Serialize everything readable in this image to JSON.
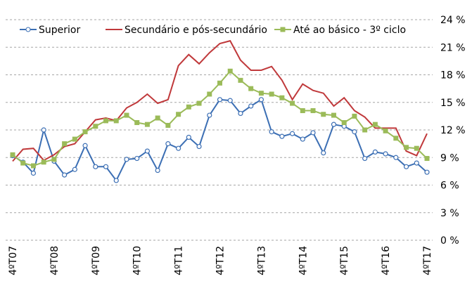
{
  "chart_data": {
    "type": "line",
    "categories": [
      "4ºT07",
      null,
      null,
      null,
      "4ºT08",
      null,
      null,
      null,
      "4ºT09",
      null,
      null,
      null,
      "4ºT10",
      null,
      null,
      null,
      "4ºT11",
      null,
      null,
      null,
      "4ºT12",
      null,
      null,
      null,
      "4ºT13",
      null,
      null,
      null,
      "4ºT14",
      null,
      null,
      null,
      "4ºT15",
      null,
      null,
      null,
      "4ºT16",
      null,
      null,
      null,
      "4ºT17"
    ],
    "series": [
      {
        "name": "Superior",
        "color": "#3c6fb4",
        "marker": "circle",
        "values": [
          9.2,
          8.5,
          7.3,
          12.0,
          8.6,
          7.1,
          7.7,
          10.3,
          8.0,
          8.0,
          6.5,
          8.8,
          8.9,
          9.7,
          7.6,
          10.5,
          10.0,
          11.2,
          10.2,
          13.6,
          15.3,
          15.2,
          13.8,
          14.6,
          15.3,
          11.8,
          11.3,
          11.6,
          11.0,
          11.7,
          9.5,
          12.6,
          12.4,
          11.8,
          8.9,
          9.6,
          9.4,
          9.0,
          8.0,
          8.4,
          7.4
        ]
      },
      {
        "name": "Secundário e pós-secundário",
        "color": "#c0393b",
        "marker": "none",
        "values": [
          8.6,
          9.9,
          10.0,
          8.7,
          9.3,
          10.2,
          10.5,
          11.8,
          13.1,
          13.3,
          13.0,
          14.4,
          15.0,
          15.9,
          14.9,
          15.3,
          19.0,
          20.2,
          19.2,
          20.4,
          21.4,
          21.7,
          19.6,
          18.5,
          18.5,
          18.9,
          17.4,
          15.3,
          17.0,
          16.3,
          16.0,
          14.6,
          15.5,
          14.1,
          13.4,
          12.2,
          12.2,
          12.2,
          9.7,
          9.2,
          11.6
        ]
      },
      {
        "name": "Até ao básico - 3º ciclo",
        "color": "#9bbb59",
        "marker": "square",
        "values": [
          9.3,
          8.4,
          8.1,
          8.5,
          8.8,
          10.5,
          11.0,
          11.8,
          12.4,
          13.0,
          13.0,
          13.6,
          12.8,
          12.6,
          13.3,
          12.5,
          13.7,
          14.5,
          14.9,
          15.9,
          17.1,
          18.4,
          17.4,
          16.5,
          16.0,
          15.9,
          15.5,
          14.9,
          14.1,
          14.1,
          13.7,
          13.6,
          12.8,
          13.5,
          12.0,
          12.6,
          11.9,
          11.1,
          10.1,
          10.0,
          8.9
        ]
      }
    ],
    "ylim": [
      0,
      24
    ],
    "yticks": [
      {
        "value": 0,
        "label": "0 %"
      },
      {
        "value": 3,
        "label": "3 %"
      },
      {
        "value": 6,
        "label": "6 %"
      },
      {
        "value": 9,
        "label": "9 %"
      },
      {
        "value": 12,
        "label": "12 %"
      },
      {
        "value": 15,
        "label": "15 %"
      },
      {
        "value": 18,
        "label": "18 %"
      },
      {
        "value": 21,
        "label": "21 %"
      },
      {
        "value": 24,
        "label": "24 %"
      }
    ],
    "grid": true,
    "legend": "top"
  }
}
